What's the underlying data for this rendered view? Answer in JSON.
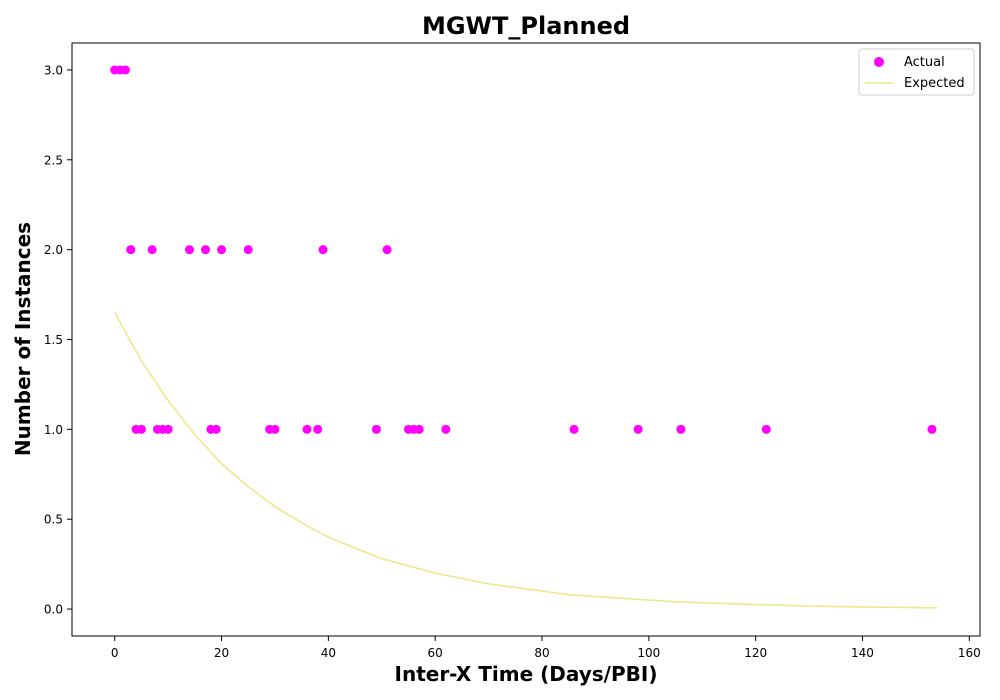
{
  "chart_data": {
    "type": "scatter",
    "title": "MGWT_Planned",
    "xlabel": "Inter-X Time (Days/PBI)",
    "ylabel": "Number of Instances",
    "xlim": [
      -8,
      162
    ],
    "ylim": [
      -0.15,
      3.15
    ],
    "xticks": [
      0,
      20,
      40,
      60,
      80,
      100,
      120,
      140,
      160
    ],
    "yticks": [
      0.0,
      0.5,
      1.0,
      1.5,
      2.0,
      2.5,
      3.0
    ],
    "grid": false,
    "legend_position": "top-right",
    "series": [
      {
        "name": "Actual",
        "kind": "scatter",
        "color": "#ff00ff",
        "x": [
          0,
          1,
          2,
          3,
          4,
          5,
          7,
          8,
          9,
          10,
          14,
          17,
          18,
          19,
          20,
          25,
          29,
          30,
          36,
          38,
          39,
          49,
          51,
          55,
          56,
          57,
          62,
          86,
          98,
          106,
          122,
          153
        ],
        "y": [
          3,
          3,
          3,
          2,
          1,
          1,
          2,
          1,
          1,
          1,
          2,
          2,
          1,
          1,
          2,
          2,
          1,
          1,
          1,
          1,
          2,
          1,
          2,
          1,
          1,
          1,
          1,
          1,
          1,
          1,
          1,
          1
        ]
      },
      {
        "name": "Expected",
        "kind": "line",
        "color": "#f0e68c",
        "x": [
          0,
          5,
          10,
          15,
          20,
          25,
          30,
          35,
          40,
          45,
          50,
          55,
          60,
          65,
          70,
          75,
          80,
          85,
          90,
          95,
          100,
          105,
          110,
          115,
          120,
          125,
          130,
          135,
          140,
          145,
          150,
          154
        ],
        "y": [
          1.65,
          1.38,
          1.16,
          0.97,
          0.81,
          0.68,
          0.57,
          0.48,
          0.4,
          0.34,
          0.28,
          0.24,
          0.2,
          0.17,
          0.14,
          0.12,
          0.1,
          0.08,
          0.07,
          0.06,
          0.05,
          0.04,
          0.035,
          0.03,
          0.025,
          0.021,
          0.017,
          0.014,
          0.012,
          0.01,
          0.008,
          0.007
        ]
      }
    ]
  }
}
